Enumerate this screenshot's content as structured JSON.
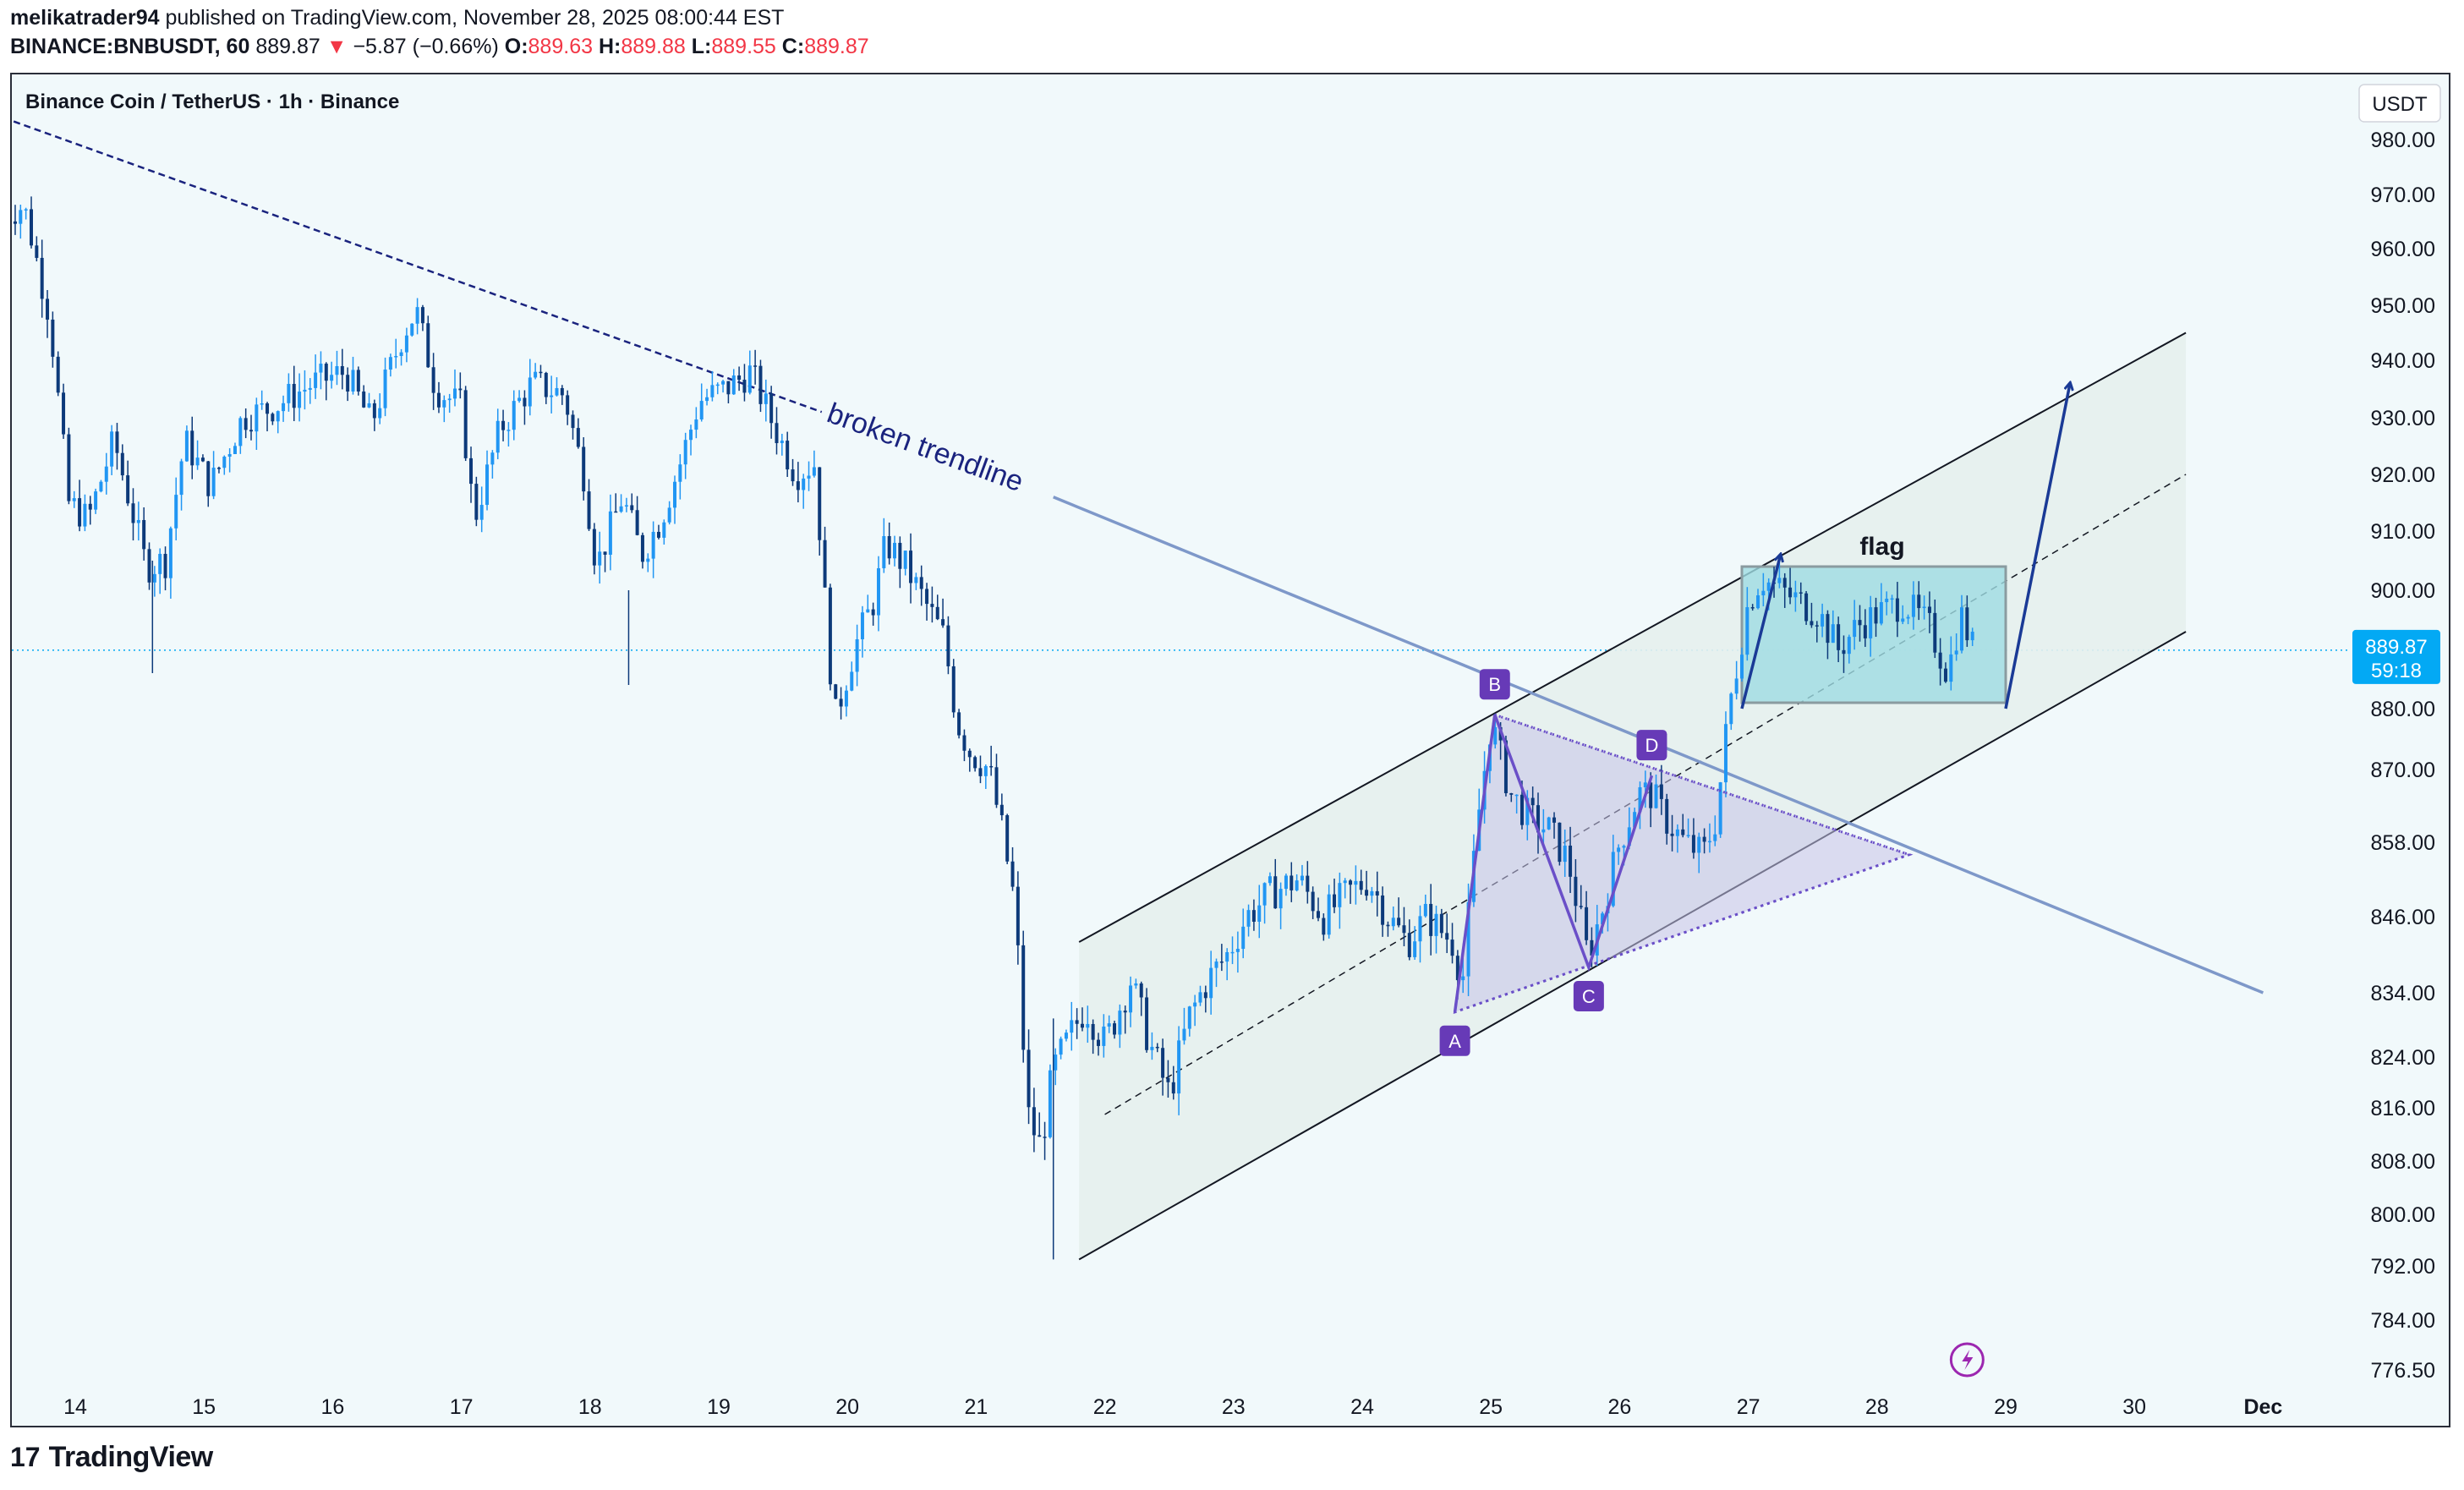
{
  "header": {
    "author": "melikatrader94",
    "published_text": "published on TradingView.com, November 28, 2025 08:00:44 EST",
    "symbol": "BINANCE:BNBUSDT, 60",
    "last": "889.87",
    "change_arrow": "▼",
    "change": "−5.87 (−0.66%)",
    "o_label": "O:",
    "o": "889.63",
    "h_label": "H:",
    "h": "889.88",
    "l_label": "L:",
    "l": "889.55",
    "c_label": "C:",
    "c": "889.87"
  },
  "footer": {
    "brand": "TradingView",
    "mark": "17"
  },
  "colors": {
    "up": "#2196f3",
    "down": "#0d3a7a",
    "channel_fill": "#e6efed",
    "triangle_fill": "#c7c3e8",
    "flag_fill": "#9fdce2",
    "label_bg": "#673ab7",
    "price_tag": "#03a9f4",
    "trendline": "#7e98c9",
    "arrow": "#1a3a96"
  },
  "chart_data": {
    "type": "candlestick",
    "title": "Binance Coin / TetherUS · 1h · Binance",
    "currency": "USDT",
    "y_axis_ticks": [
      {
        "label": "980.00",
        "v": 980
      },
      {
        "label": "970.00",
        "v": 970
      },
      {
        "label": "960.00",
        "v": 960
      },
      {
        "label": "950.00",
        "v": 950
      },
      {
        "label": "940.00",
        "v": 940
      },
      {
        "label": "930.00",
        "v": 930
      },
      {
        "label": "920.00",
        "v": 920
      },
      {
        "label": "910.00",
        "v": 910
      },
      {
        "label": "900.00",
        "v": 900
      },
      {
        "label": "880.00",
        "v": 880
      },
      {
        "label": "870.00",
        "v": 870
      },
      {
        "label": "858.00",
        "v": 858
      },
      {
        "label": "846.00",
        "v": 846
      },
      {
        "label": "834.00",
        "v": 834
      },
      {
        "label": "824.00",
        "v": 824
      },
      {
        "label": "816.00",
        "v": 816
      },
      {
        "label": "808.00",
        "v": 808
      },
      {
        "label": "800.00",
        "v": 800
      },
      {
        "label": "792.00",
        "v": 792
      },
      {
        "label": "784.00",
        "v": 784
      },
      {
        "label": "776.50",
        "v": 776.5
      }
    ],
    "x_axis_ticks": [
      {
        "label": "14",
        "t": 14
      },
      {
        "label": "15",
        "t": 15
      },
      {
        "label": "16",
        "t": 16
      },
      {
        "label": "17",
        "t": 17
      },
      {
        "label": "18",
        "t": 18
      },
      {
        "label": "19",
        "t": 19
      },
      {
        "label": "20",
        "t": 20
      },
      {
        "label": "21",
        "t": 21
      },
      {
        "label": "22",
        "t": 22
      },
      {
        "label": "23",
        "t": 23
      },
      {
        "label": "24",
        "t": 24
      },
      {
        "label": "25",
        "t": 25
      },
      {
        "label": "26",
        "t": 26
      },
      {
        "label": "27",
        "t": 27
      },
      {
        "label": "28",
        "t": 28
      },
      {
        "label": "29",
        "t": 29
      },
      {
        "label": "30",
        "t": 30
      },
      {
        "label": "Dec",
        "t": 31
      }
    ],
    "last_price": "889.87",
    "countdown": "59:18",
    "price_path": [
      [
        13.45,
        966
      ],
      [
        13.6,
        968
      ],
      [
        13.8,
        948
      ],
      [
        13.95,
        915
      ],
      [
        14.1,
        912
      ],
      [
        14.3,
        926
      ],
      [
        14.55,
        904
      ],
      [
        14.7,
        905
      ],
      [
        14.85,
        926
      ],
      [
        15.05,
        918
      ],
      [
        15.3,
        930
      ],
      [
        15.55,
        932
      ],
      [
        15.85,
        936
      ],
      [
        16.1,
        938
      ],
      [
        16.3,
        929
      ],
      [
        16.55,
        945
      ],
      [
        16.65,
        949
      ],
      [
        16.8,
        935
      ],
      [
        17.0,
        932
      ],
      [
        17.1,
        912
      ],
      [
        17.3,
        928
      ],
      [
        17.55,
        936
      ],
      [
        17.8,
        934
      ],
      [
        17.95,
        920
      ],
      [
        18.05,
        904
      ],
      [
        18.25,
        916
      ],
      [
        18.4,
        906
      ],
      [
        18.55,
        912
      ],
      [
        18.7,
        922
      ],
      [
        18.85,
        933
      ],
      [
        19.05,
        935
      ],
      [
        19.25,
        938
      ],
      [
        19.4,
        930
      ],
      [
        19.6,
        920
      ],
      [
        19.75,
        922
      ],
      [
        19.8,
        905
      ],
      [
        19.9,
        878
      ],
      [
        20.05,
        890
      ],
      [
        20.2,
        898
      ],
      [
        20.3,
        908
      ],
      [
        20.45,
        904
      ],
      [
        20.6,
        898
      ],
      [
        20.75,
        892
      ],
      [
        20.85,
        878
      ],
      [
        20.95,
        873
      ],
      [
        21.1,
        870
      ],
      [
        21.2,
        860
      ],
      [
        21.3,
        848
      ],
      [
        21.4,
        815
      ],
      [
        21.5,
        810
      ],
      [
        21.6,
        822
      ],
      [
        21.75,
        828
      ],
      [
        21.85,
        832
      ],
      [
        22.0,
        826
      ],
      [
        22.2,
        836
      ],
      [
        22.35,
        826
      ],
      [
        22.5,
        818
      ],
      [
        22.65,
        830
      ],
      [
        22.8,
        836
      ],
      [
        22.95,
        840
      ],
      [
        23.1,
        846
      ],
      [
        23.3,
        850
      ],
      [
        23.5,
        852
      ],
      [
        23.7,
        846
      ],
      [
        23.9,
        850
      ],
      [
        24.05,
        852
      ],
      [
        24.2,
        846
      ],
      [
        24.35,
        842
      ],
      [
        24.5,
        846
      ],
      [
        24.7,
        842
      ],
      [
        24.78,
        836
      ],
      [
        24.9,
        862
      ],
      [
        25.0,
        878
      ],
      [
        25.15,
        866
      ],
      [
        25.3,
        862
      ],
      [
        25.45,
        860
      ],
      [
        25.6,
        855
      ],
      [
        25.75,
        840
      ],
      [
        25.85,
        846
      ],
      [
        26.0,
        858
      ],
      [
        26.15,
        866
      ],
      [
        26.25,
        866
      ],
      [
        26.35,
        862
      ],
      [
        26.5,
        858
      ],
      [
        26.65,
        856
      ],
      [
        26.75,
        862
      ],
      [
        26.85,
        880
      ],
      [
        27.0,
        898
      ],
      [
        27.1,
        902
      ],
      [
        27.25,
        900
      ],
      [
        27.4,
        898
      ],
      [
        27.55,
        896
      ],
      [
        27.7,
        890
      ],
      [
        27.85,
        894
      ],
      [
        28.0,
        896
      ],
      [
        28.2,
        898
      ],
      [
        28.4,
        894
      ],
      [
        28.55,
        886
      ],
      [
        28.65,
        896
      ],
      [
        28.75,
        890
      ]
    ],
    "annotations": [
      {
        "type": "dashed_trendline",
        "from": [
          13.2,
          986
        ],
        "to": [
          19.8,
          931
        ]
      },
      {
        "type": "solid_trendline",
        "label": "broken trendline",
        "from": [
          21.6,
          916
        ],
        "to": [
          31.0,
          834
        ]
      },
      {
        "type": "ascending_channel",
        "upper": {
          "from": [
            21.8,
            842
          ],
          "to": [
            30.4,
            945
          ]
        },
        "middle": {
          "from": [
            22.0,
            815
          ],
          "to": [
            30.4,
            920
          ]
        },
        "lower": {
          "from": [
            21.8,
            793
          ],
          "to": [
            30.4,
            893
          ]
        }
      },
      {
        "type": "triangle_pattern",
        "points": {
          "A": [
            24.72,
            831
          ],
          "B": [
            25.03,
            879
          ],
          "C": [
            25.76,
            838
          ],
          "D": [
            26.25,
            869
          ]
        },
        "apex": [
          28.25,
          856
        ]
      },
      {
        "type": "rectangle",
        "label": "flag",
        "from": [
          26.95,
          904
        ],
        "to": [
          29.0,
          881
        ]
      },
      {
        "type": "arrow_path",
        "points": [
          [
            26.95,
            880
          ],
          [
            27.25,
            906
          ]
        ]
      },
      {
        "type": "arrow_path",
        "points": [
          [
            29.0,
            880
          ],
          [
            29.5,
            936
          ]
        ]
      }
    ]
  }
}
